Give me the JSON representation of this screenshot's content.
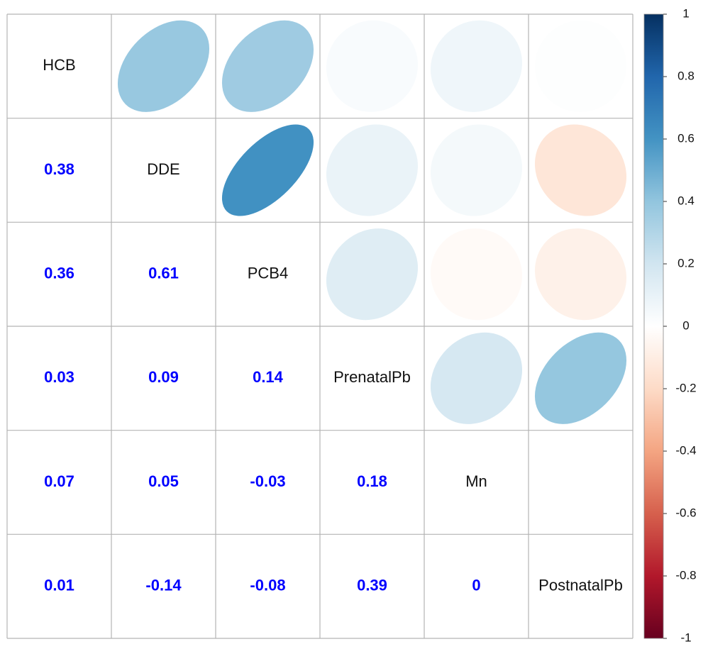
{
  "chart_data": {
    "type": "correlation",
    "variables": [
      "HCB",
      "DDE",
      "PCB4",
      "PrenatalPb",
      "Mn",
      "PostnatalPb"
    ],
    "correlations": [
      [
        0.38
      ],
      [
        0.36,
        0.61
      ],
      [
        0.03,
        0.09,
        0.14
      ],
      [
        0.07,
        0.05,
        -0.03,
        0.18
      ],
      [
        0.01,
        -0.14,
        -0.08,
        0.39,
        0
      ]
    ],
    "number_color": "#0000ff",
    "colormap": [
      "#67001F",
      "#B2182B",
      "#D6604D",
      "#F4A582",
      "#FDDBC7",
      "#FFFFFF",
      "#D1E5F0",
      "#92C5DE",
      "#4393C3",
      "#2166AC",
      "#053061"
    ],
    "clim": [
      -1,
      1
    ],
    "cticks": [
      -1,
      -0.8,
      -0.6,
      -0.4,
      -0.2,
      0,
      0.2,
      0.4,
      0.6,
      0.8,
      1
    ]
  }
}
